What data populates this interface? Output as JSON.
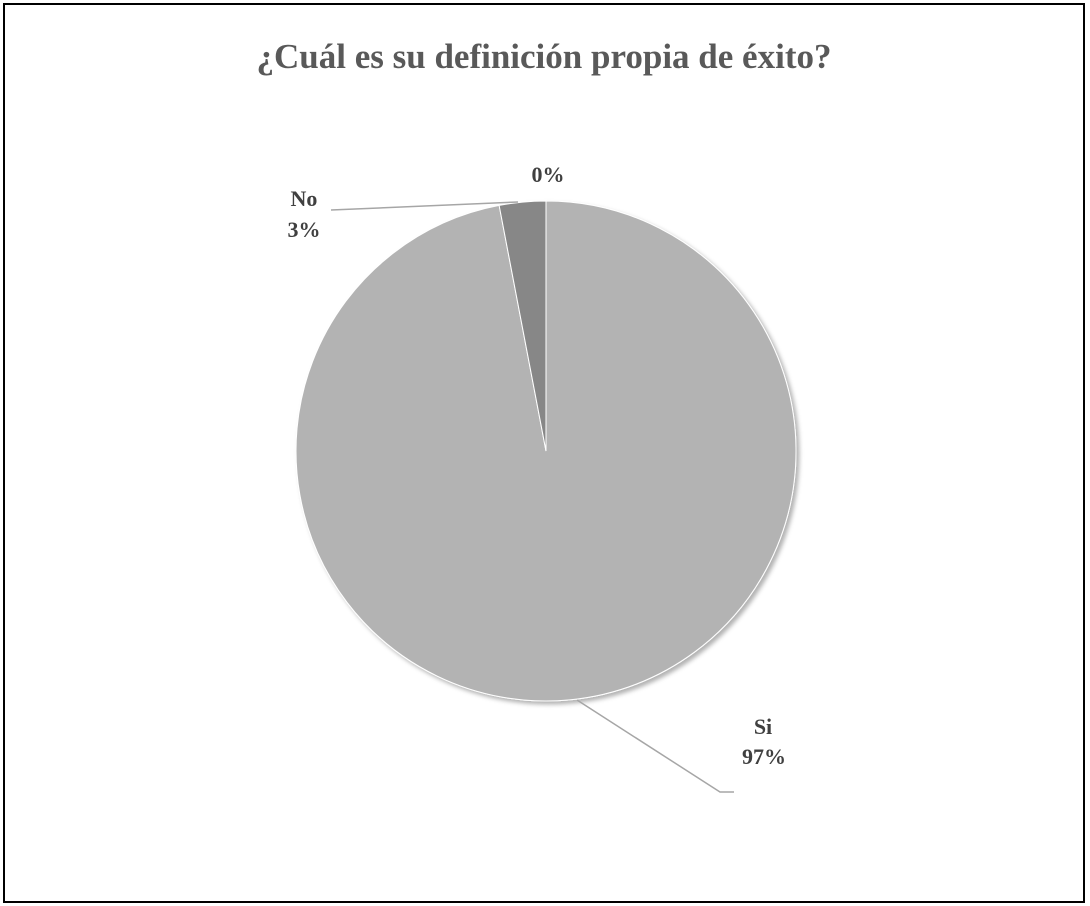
{
  "chart_data": {
    "type": "pie",
    "title": "¿Cuál es su definición propia de éxito?",
    "slices": [
      {
        "category": "Si",
        "value": 97,
        "label": "97%",
        "color": "#b3b3b3"
      },
      {
        "category": "No",
        "value": 3,
        "label": "3%",
        "color": "#878787"
      },
      {
        "category": "",
        "value": 0,
        "label": "0%",
        "color": "#5c5c5c"
      }
    ],
    "start": "12 o'clock",
    "direction": "clockwise",
    "data_labels": "outside with leader lines",
    "legend": "none"
  }
}
